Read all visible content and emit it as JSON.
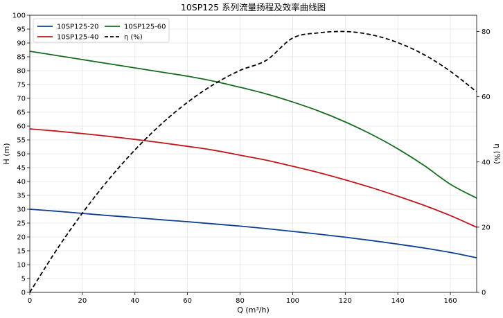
{
  "chart_data": {
    "type": "line",
    "title": "10SP125 系列流量扬程及效率曲线图",
    "xlabel": "Q (m³/h)",
    "ylabel": "H (m)",
    "y2label": "η (%)",
    "xlim": [
      0,
      170
    ],
    "ylim": [
      0,
      100
    ],
    "y2lim": [
      0,
      85
    ],
    "x_ticks": [
      0,
      20,
      40,
      60,
      80,
      100,
      120,
      140,
      160
    ],
    "y_ticks": [
      0,
      5,
      10,
      15,
      20,
      25,
      30,
      35,
      40,
      45,
      50,
      55,
      60,
      65,
      70,
      75,
      80,
      85,
      90,
      95,
      100
    ],
    "y2_ticks": [
      0,
      20,
      40,
      60,
      80
    ],
    "grid": true,
    "legend": "top-left",
    "x": [
      0,
      10,
      20,
      30,
      40,
      50,
      60,
      70,
      80,
      90,
      100,
      110,
      120,
      130,
      140,
      150,
      160,
      170
    ],
    "series": [
      {
        "name": "10SP125-20",
        "axis": "left",
        "color": "#0d3f8f",
        "dash": "solid",
        "values": [
          30.0,
          29.3,
          28.5,
          27.7,
          27.0,
          26.2,
          25.5,
          24.7,
          23.9,
          23.0,
          22.0,
          21.0,
          19.9,
          18.7,
          17.4,
          16.0,
          14.4,
          12.5
        ]
      },
      {
        "name": "10SP125-40",
        "axis": "left",
        "color": "#c0161c",
        "dash": "solid",
        "values": [
          59.0,
          58.2,
          57.3,
          56.3,
          55.2,
          54.0,
          52.7,
          51.3,
          49.5,
          47.7,
          45.5,
          43.2,
          40.6,
          37.8,
          34.7,
          31.4,
          27.7,
          23.5
        ]
      },
      {
        "name": "10SP125-60",
        "axis": "left",
        "color": "#176b1f",
        "dash": "solid",
        "values": [
          87.0,
          85.5,
          84.0,
          82.5,
          81.0,
          79.5,
          78.0,
          76.2,
          74.0,
          71.6,
          68.7,
          65.4,
          61.5,
          57.0,
          51.8,
          45.8,
          39.0,
          34.0
        ]
      },
      {
        "name": "η (%)",
        "axis": "right",
        "color": "#000000",
        "dash": "dashed",
        "values": [
          0.0,
          12.8,
          24.3,
          34.6,
          43.7,
          51.6,
          58.3,
          63.8,
          68.1,
          71.2,
          78.0,
          79.6,
          80.0,
          79.0,
          76.6,
          72.9,
          67.8,
          61.5
        ]
      }
    ]
  }
}
